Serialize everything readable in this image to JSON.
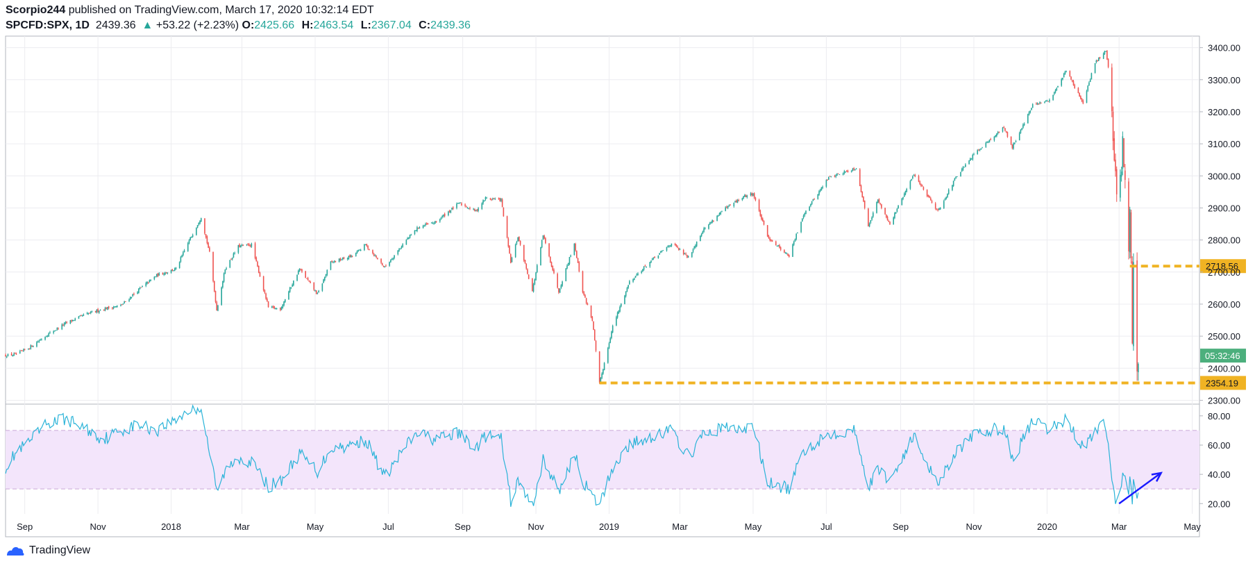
{
  "header": {
    "author": "Scorpio244",
    "published_text": " published on TradingView.com, March 17, 2020 10:32:14 EDT",
    "symbol": "SPCFD:SPX, 1D",
    "last": "2439.36",
    "change_arrow": "▲",
    "change": "+53.22 (+2.23%)",
    "open_label": "O:",
    "open": "2425.66",
    "high_label": "H:",
    "high": "2463.54",
    "low_label": "L:",
    "low": "2367.04",
    "close_label": "C:",
    "close": "2439.36"
  },
  "footer": {
    "brand": "TradingView"
  },
  "colors": {
    "up": "#26a69a",
    "down": "#ef5350",
    "hline": "#f0b323",
    "rsi_line": "#2ab3d8",
    "rsi_band": "#f3e5fb",
    "countdown": "#4caf7d",
    "arrow": "#1a1aff"
  },
  "chart_data": [
    {
      "type": "candlestick",
      "title": "",
      "x_ticks": [
        "Sep",
        "Nov",
        "2018",
        "Mar",
        "May",
        "Jul",
        "Sep",
        "Nov",
        "2019",
        "Mar",
        "May",
        "Jul",
        "Sep",
        "Nov",
        "2020",
        "Mar",
        "May"
      ],
      "y_ticks": [
        3400,
        3300,
        3200,
        3100,
        3000,
        2900,
        2800,
        2700,
        2600,
        2500,
        2400,
        2300
      ],
      "y_tick_labels": [
        "3400.00",
        "3300.00",
        "3200.00",
        "3100.00",
        "3000.00",
        "2900.00",
        "2800.00",
        "2700.00",
        "2600.00",
        "2500.00",
        "2400.00",
        "2300.00"
      ],
      "ylim": [
        2288,
        3436
      ],
      "xlim": [
        "2017-08-16",
        "2020-05-07"
      ],
      "grid": true,
      "countdown_label": "05:32:46",
      "countdown_value": 2439.36,
      "horizontal_lines": [
        {
          "value": 2718.56,
          "label": "2718.56",
          "from": "2020-03-10"
        },
        {
          "value": 2354.19,
          "label": "2354.19",
          "from": "2018-12-24"
        }
      ],
      "price_path": [
        [
          "2017-08-16",
          2440
        ],
        [
          "2017-08-25",
          2443
        ],
        [
          "2017-09-05",
          2465
        ],
        [
          "2017-09-20",
          2505
        ],
        [
          "2017-10-05",
          2540
        ],
        [
          "2017-10-20",
          2565
        ],
        [
          "2017-11-05",
          2585
        ],
        [
          "2017-11-20",
          2595
        ],
        [
          "2017-12-05",
          2645
        ],
        [
          "2017-12-20",
          2690
        ],
        [
          "2018-01-05",
          2710
        ],
        [
          "2018-01-15",
          2790
        ],
        [
          "2018-01-26",
          2872
        ],
        [
          "2018-02-02",
          2760
        ],
        [
          "2018-02-08",
          2581
        ],
        [
          "2018-02-15",
          2710
        ],
        [
          "2018-02-26",
          2780
        ],
        [
          "2018-03-09",
          2785
        ],
        [
          "2018-03-23",
          2590
        ],
        [
          "2018-04-02",
          2585
        ],
        [
          "2018-04-18",
          2710
        ],
        [
          "2018-05-03",
          2630
        ],
        [
          "2018-05-14",
          2730
        ],
        [
          "2018-06-01",
          2750
        ],
        [
          "2018-06-12",
          2785
        ],
        [
          "2018-06-28",
          2715
        ],
        [
          "2018-07-16",
          2800
        ],
        [
          "2018-07-26",
          2840
        ],
        [
          "2018-08-09",
          2855
        ],
        [
          "2018-08-29",
          2915
        ],
        [
          "2018-09-12",
          2890
        ],
        [
          "2018-09-20",
          2931
        ],
        [
          "2018-10-03",
          2925
        ],
        [
          "2018-10-11",
          2730
        ],
        [
          "2018-10-17",
          2810
        ],
        [
          "2018-10-29",
          2640
        ],
        [
          "2018-11-07",
          2815
        ],
        [
          "2018-11-20",
          2640
        ],
        [
          "2018-12-03",
          2790
        ],
        [
          "2018-12-10",
          2640
        ],
        [
          "2018-12-18",
          2550
        ],
        [
          "2018-12-24",
          2351
        ],
        [
          "2019-01-04",
          2530
        ],
        [
          "2019-01-18",
          2670
        ],
        [
          "2019-02-05",
          2735
        ],
        [
          "2019-02-22",
          2790
        ],
        [
          "2019-03-08",
          2745
        ],
        [
          "2019-03-20",
          2830
        ],
        [
          "2019-04-05",
          2890
        ],
        [
          "2019-04-23",
          2935
        ],
        [
          "2019-05-01",
          2945
        ],
        [
          "2019-05-13",
          2810
        ],
        [
          "2019-05-31",
          2750
        ],
        [
          "2019-06-12",
          2880
        ],
        [
          "2019-07-03",
          2995
        ],
        [
          "2019-07-26",
          3025
        ],
        [
          "2019-08-05",
          2845
        ],
        [
          "2019-08-13",
          2925
        ],
        [
          "2019-08-23",
          2850
        ],
        [
          "2019-09-12",
          3005
        ],
        [
          "2019-10-02",
          2890
        ],
        [
          "2019-10-17",
          2995
        ],
        [
          "2019-11-04",
          3080
        ],
        [
          "2019-11-26",
          3150
        ],
        [
          "2019-12-03",
          3090
        ],
        [
          "2019-12-20",
          3220
        ],
        [
          "2020-01-03",
          3235
        ],
        [
          "2020-01-17",
          3330
        ],
        [
          "2020-01-31",
          3225
        ],
        [
          "2020-02-10",
          3355
        ],
        [
          "2020-02-19",
          3390
        ],
        [
          "2020-02-21",
          3340
        ],
        [
          "2020-02-25",
          3130
        ],
        [
          "2020-02-28",
          2955
        ],
        [
          "2020-03-03",
          3000
        ],
        [
          "2020-03-04",
          3130
        ],
        [
          "2020-03-09",
          2746
        ],
        [
          "2020-03-10",
          2882
        ],
        [
          "2020-03-11",
          2741
        ],
        [
          "2020-03-12",
          2480
        ],
        [
          "2020-03-13",
          2711
        ],
        [
          "2020-03-16",
          2386
        ],
        [
          "2020-03-17",
          2439
        ]
      ]
    },
    {
      "type": "line",
      "title": "",
      "y_ticks": [
        80,
        60,
        40,
        20
      ],
      "y_tick_labels": [
        "80.00",
        "60.00",
        "40.00",
        "20.00"
      ],
      "ylim": [
        13,
        88
      ],
      "bands": [
        30,
        70
      ],
      "rsi_path": [
        [
          "2017-08-16",
          45
        ],
        [
          "2017-08-25",
          55
        ],
        [
          "2017-09-05",
          62
        ],
        [
          "2017-09-20",
          75
        ],
        [
          "2017-10-05",
          78
        ],
        [
          "2017-10-20",
          72
        ],
        [
          "2017-11-05",
          64
        ],
        [
          "2017-11-20",
          70
        ],
        [
          "2017-12-05",
          74
        ],
        [
          "2017-12-20",
          70
        ],
        [
          "2018-01-05",
          78
        ],
        [
          "2018-01-15",
          83
        ],
        [
          "2018-01-26",
          86
        ],
        [
          "2018-02-02",
          55
        ],
        [
          "2018-02-08",
          28
        ],
        [
          "2018-02-15",
          42
        ],
        [
          "2018-02-26",
          52
        ],
        [
          "2018-03-09",
          48
        ],
        [
          "2018-03-23",
          32
        ],
        [
          "2018-04-02",
          35
        ],
        [
          "2018-04-18",
          54
        ],
        [
          "2018-05-03",
          42
        ],
        [
          "2018-05-14",
          58
        ],
        [
          "2018-06-01",
          60
        ],
        [
          "2018-06-12",
          64
        ],
        [
          "2018-06-28",
          38
        ],
        [
          "2018-07-16",
          60
        ],
        [
          "2018-07-26",
          68
        ],
        [
          "2018-08-09",
          64
        ],
        [
          "2018-08-29",
          68
        ],
        [
          "2018-09-12",
          58
        ],
        [
          "2018-09-20",
          66
        ],
        [
          "2018-10-03",
          64
        ],
        [
          "2018-10-11",
          22
        ],
        [
          "2018-10-17",
          35
        ],
        [
          "2018-10-29",
          18
        ],
        [
          "2018-11-07",
          50
        ],
        [
          "2018-11-20",
          28
        ],
        [
          "2018-12-03",
          54
        ],
        [
          "2018-12-10",
          36
        ],
        [
          "2018-12-18",
          24
        ],
        [
          "2018-12-24",
          19
        ],
        [
          "2019-01-04",
          45
        ],
        [
          "2019-01-18",
          60
        ],
        [
          "2019-02-05",
          66
        ],
        [
          "2019-02-22",
          70
        ],
        [
          "2019-03-08",
          52
        ],
        [
          "2019-03-20",
          66
        ],
        [
          "2019-04-05",
          72
        ],
        [
          "2019-04-23",
          70
        ],
        [
          "2019-05-01",
          74
        ],
        [
          "2019-05-13",
          34
        ],
        [
          "2019-05-31",
          30
        ],
        [
          "2019-06-12",
          56
        ],
        [
          "2019-07-03",
          68
        ],
        [
          "2019-07-26",
          70
        ],
        [
          "2019-08-05",
          30
        ],
        [
          "2019-08-13",
          44
        ],
        [
          "2019-08-23",
          36
        ],
        [
          "2019-09-12",
          66
        ],
        [
          "2019-10-02",
          34
        ],
        [
          "2019-10-17",
          56
        ],
        [
          "2019-11-04",
          68
        ],
        [
          "2019-11-26",
          72
        ],
        [
          "2019-12-03",
          50
        ],
        [
          "2019-12-20",
          76
        ],
        [
          "2020-01-03",
          70
        ],
        [
          "2020-01-17",
          78
        ],
        [
          "2020-01-31",
          58
        ],
        [
          "2020-02-10",
          70
        ],
        [
          "2020-02-19",
          74
        ],
        [
          "2020-02-21",
          62
        ],
        [
          "2020-02-25",
          30
        ],
        [
          "2020-02-28",
          20
        ],
        [
          "2020-03-03",
          30
        ],
        [
          "2020-03-04",
          44
        ],
        [
          "2020-03-09",
          26
        ],
        [
          "2020-03-10",
          40
        ],
        [
          "2020-03-11",
          30
        ],
        [
          "2020-03-12",
          22
        ],
        [
          "2020-03-13",
          38
        ],
        [
          "2020-03-16",
          25
        ],
        [
          "2020-03-17",
          32
        ]
      ]
    }
  ]
}
